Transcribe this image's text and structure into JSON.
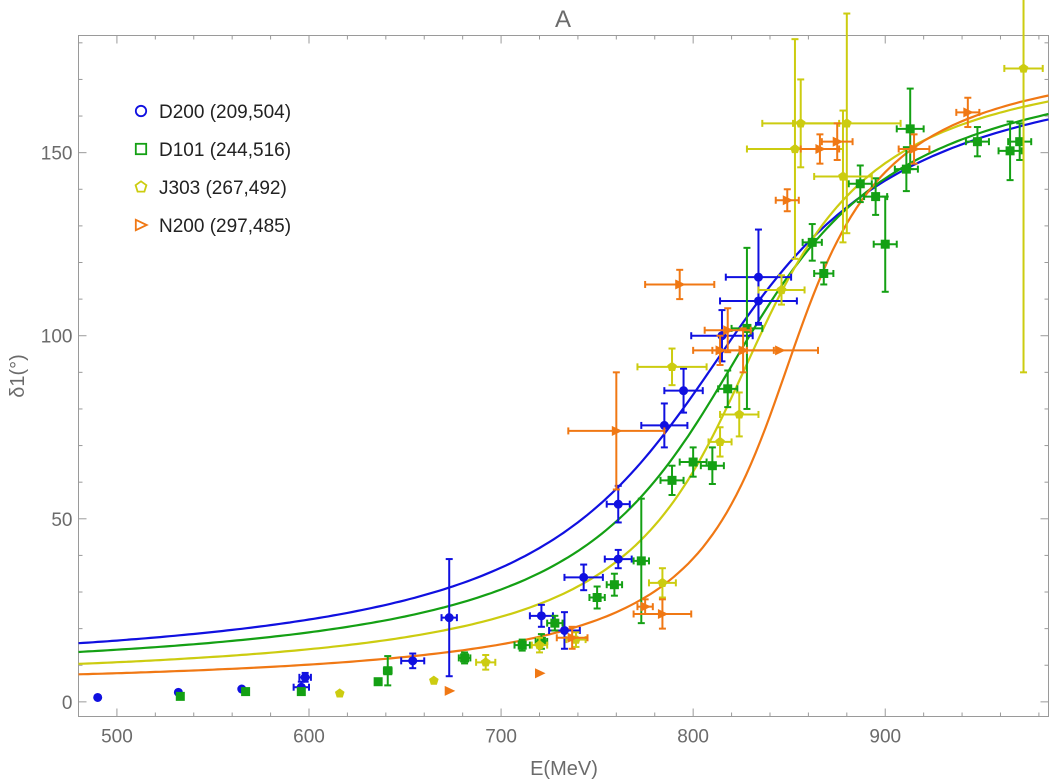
{
  "chart_data": {
    "type": "scatter",
    "title": "A",
    "xlabel": "E(MeV)",
    "ylabel": "δ1(°)",
    "xlim": [
      480,
      985
    ],
    "ylim": [
      -4,
      182
    ],
    "xticks": [
      500,
      600,
      700,
      800,
      900
    ],
    "yticks": [
      0,
      50,
      100,
      150
    ],
    "legend_position": "top-left",
    "series": [
      {
        "name": "D200 (209,504)",
        "color": "#1010e0",
        "marker": "circle",
        "curve": {
          "M": 808,
          "G": 150
        },
        "points": [
          {
            "x": 490,
            "y": 1.2,
            "xerr": 0,
            "yerr": 0
          },
          {
            "x": 532,
            "y": 2.6,
            "xerr": 0,
            "yerr": 0
          },
          {
            "x": 565,
            "y": 3.5,
            "xerr": 0,
            "yerr": 0
          },
          {
            "x": 596,
            "y": 4.0,
            "xerr": 4,
            "yerr": 1.5
          },
          {
            "x": 598,
            "y": 6.7,
            "xerr": 3,
            "yerr": 1.2
          },
          {
            "x": 654,
            "y": 11.2,
            "xerr": 6,
            "yerr": 2
          },
          {
            "x": 673,
            "y": 23.0,
            "xerr": 4,
            "yerr": 16
          },
          {
            "x": 721,
            "y": 23.5,
            "xerr": 6,
            "yerr": 3
          },
          {
            "x": 733,
            "y": 19.5,
            "xerr": 8,
            "yerr": 5
          },
          {
            "x": 743,
            "y": 34.0,
            "xerr": 10,
            "yerr": 3.5
          },
          {
            "x": 761,
            "y": 39.0,
            "xerr": 7,
            "yerr": 2.5
          },
          {
            "x": 761,
            "y": 54.0,
            "xerr": 6,
            "yerr": 5
          },
          {
            "x": 785,
            "y": 75.5,
            "xerr": 12,
            "yerr": 6
          },
          {
            "x": 795,
            "y": 85.0,
            "xerr": 10,
            "yerr": 6
          },
          {
            "x": 815,
            "y": 100.0,
            "xerr": 16,
            "yerr": 7
          },
          {
            "x": 834,
            "y": 116.0,
            "xerr": 17,
            "yerr": 13
          },
          {
            "x": 834,
            "y": 109.5,
            "xerr": 20,
            "yerr": 6
          }
        ]
      },
      {
        "name": "D101 (244,516)",
        "color": "#14a014",
        "marker": "square",
        "curve": {
          "M": 818,
          "G": 130
        },
        "points": [
          {
            "x": 533,
            "y": 1.5,
            "xerr": 0,
            "yerr": 0
          },
          {
            "x": 567,
            "y": 2.8,
            "xerr": 0,
            "yerr": 0
          },
          {
            "x": 596,
            "y": 2.8,
            "xerr": 0,
            "yerr": 0
          },
          {
            "x": 636,
            "y": 5.5,
            "xerr": 0,
            "yerr": 0
          },
          {
            "x": 641,
            "y": 8.5,
            "xerr": 2,
            "yerr": 4
          },
          {
            "x": 681,
            "y": 12.0,
            "xerr": 3,
            "yerr": 1.5
          },
          {
            "x": 711,
            "y": 15.5,
            "xerr": 4,
            "yerr": 1.5
          },
          {
            "x": 721,
            "y": 16.5,
            "xerr": 3,
            "yerr": 2
          },
          {
            "x": 728,
            "y": 21.5,
            "xerr": 4,
            "yerr": 2
          },
          {
            "x": 750,
            "y": 28.5,
            "xerr": 4,
            "yerr": 3
          },
          {
            "x": 759,
            "y": 32.0,
            "xerr": 4,
            "yerr": 3
          },
          {
            "x": 773,
            "y": 38.5,
            "xerr": 4,
            "yerr": 17
          },
          {
            "x": 789,
            "y": 60.5,
            "xerr": 6,
            "yerr": 4
          },
          {
            "x": 800,
            "y": 65.5,
            "xerr": 7,
            "yerr": 4
          },
          {
            "x": 810,
            "y": 64.5,
            "xerr": 6,
            "yerr": 5
          },
          {
            "x": 818,
            "y": 85.5,
            "xerr": 5,
            "yerr": 5
          },
          {
            "x": 828,
            "y": 102.0,
            "xerr": 8,
            "yerr": 22
          },
          {
            "x": 862,
            "y": 125.5,
            "xerr": 5,
            "yerr": 5
          },
          {
            "x": 868,
            "y": 117.0,
            "xerr": 5,
            "yerr": 3
          },
          {
            "x": 887,
            "y": 141.5,
            "xerr": 6,
            "yerr": 5
          },
          {
            "x": 895,
            "y": 138.0,
            "xerr": 6,
            "yerr": 5
          },
          {
            "x": 900,
            "y": 125.0,
            "xerr": 6,
            "yerr": 13
          },
          {
            "x": 911,
            "y": 145.5,
            "xerr": 6,
            "yerr": 6
          },
          {
            "x": 913,
            "y": 156.5,
            "xerr": 7,
            "yerr": 11
          },
          {
            "x": 948,
            "y": 153.0,
            "xerr": 6,
            "yerr": 4
          },
          {
            "x": 965,
            "y": 150.5,
            "xerr": 6,
            "yerr": 8
          },
          {
            "x": 970,
            "y": 153.0,
            "xerr": 6,
            "yerr": 5
          }
        ]
      },
      {
        "name": "J303 (267,492)",
        "color": "#cccc10",
        "marker": "pentagon",
        "curve": {
          "M": 826,
          "G": 100
        },
        "points": [
          {
            "x": 616,
            "y": 2.3,
            "xerr": 0,
            "yerr": 0
          },
          {
            "x": 665,
            "y": 5.8,
            "xerr": 0,
            "yerr": 0
          },
          {
            "x": 692,
            "y": 10.8,
            "xerr": 5,
            "yerr": 2
          },
          {
            "x": 720,
            "y": 15.5,
            "xerr": 4,
            "yerr": 2
          },
          {
            "x": 739,
            "y": 17.0,
            "xerr": 5,
            "yerr": 2
          },
          {
            "x": 784,
            "y": 32.5,
            "xerr": 7,
            "yerr": 4
          },
          {
            "x": 789,
            "y": 91.5,
            "xerr": 18,
            "yerr": 5
          },
          {
            "x": 814,
            "y": 71.0,
            "xerr": 6,
            "yerr": 4
          },
          {
            "x": 824,
            "y": 78.5,
            "xerr": 10,
            "yerr": 6
          },
          {
            "x": 846,
            "y": 112.5,
            "xerr": 12,
            "yerr": 4
          },
          {
            "x": 853,
            "y": 151.0,
            "xerr": 25,
            "yerr": 30
          },
          {
            "x": 856,
            "y": 158.0,
            "xerr": 20,
            "yerr": 12
          },
          {
            "x": 878,
            "y": 143.5,
            "xerr": 15,
            "yerr": 18
          },
          {
            "x": 880,
            "y": 158.0,
            "xerr": 28,
            "yerr": 30
          },
          {
            "x": 972,
            "y": 173.0,
            "xerr": 10,
            "yerr": 83
          }
        ]
      },
      {
        "name": "N200 (297,485)",
        "color": "#f07814",
        "marker": "triangle-right",
        "curve": {
          "M": 848,
          "G": 76
        },
        "points": [
          {
            "x": 673,
            "y": 3.0,
            "xerr": 0,
            "yerr": 0
          },
          {
            "x": 720,
            "y": 7.8,
            "xerr": 0,
            "yerr": 0
          },
          {
            "x": 737,
            "y": 17.5,
            "xerr": 8,
            "yerr": 3
          },
          {
            "x": 760,
            "y": 74.0,
            "xerr": 25,
            "yerr": 16
          },
          {
            "x": 775,
            "y": 26.0,
            "xerr": 4,
            "yerr": 2
          },
          {
            "x": 784,
            "y": 24.0,
            "xerr": 15,
            "yerr": 4
          },
          {
            "x": 793,
            "y": 114.0,
            "xerr": 18,
            "yerr": 4
          },
          {
            "x": 814,
            "y": 96.0,
            "xerr": 14,
            "yerr": 4
          },
          {
            "x": 818,
            "y": 101.5,
            "xerr": 12,
            "yerr": 6
          },
          {
            "x": 826,
            "y": 96.0,
            "xerr": 16,
            "yerr": 6
          },
          {
            "x": 845,
            "y": 96.0,
            "xerr": 20,
            "yerr": 0
          },
          {
            "x": 849,
            "y": 137.0,
            "xerr": 6,
            "yerr": 3
          },
          {
            "x": 866,
            "y": 151.0,
            "xerr": 10,
            "yerr": 4
          },
          {
            "x": 875,
            "y": 153.0,
            "xerr": 8,
            "yerr": 5
          },
          {
            "x": 915,
            "y": 151.0,
            "xerr": 8,
            "yerr": 4
          },
          {
            "x": 943,
            "y": 161.0,
            "xerr": 6,
            "yerr": 4
          }
        ]
      }
    ]
  }
}
